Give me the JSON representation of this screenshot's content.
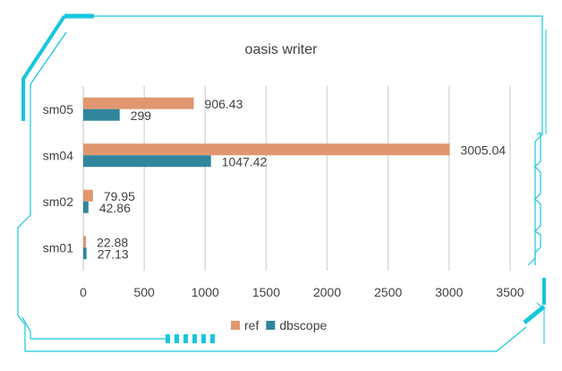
{
  "chart_data": {
    "type": "bar",
    "orientation": "horizontal",
    "title": "oasis writer",
    "categories": [
      "sm05",
      "sm04",
      "sm02",
      "sm01"
    ],
    "series": [
      {
        "name": "ref",
        "values": [
          906.43,
          3005.04,
          79.95,
          22.88
        ],
        "labels": [
          "906.43",
          "3005.04",
          "79.95",
          "22.88"
        ],
        "color": "#E0976F"
      },
      {
        "name": "dbscope",
        "values": [
          299,
          1047.42,
          42.86,
          27.13
        ],
        "labels": [
          "299",
          "1047.42",
          "42.86",
          "27.13"
        ],
        "color": "#31859C"
      }
    ],
    "xlim": [
      0,
      3500
    ],
    "xticks": [
      "0",
      "500",
      "1000",
      "1500",
      "2000",
      "2500",
      "3000",
      "3500"
    ],
    "grid": true,
    "legend": "bottom"
  },
  "frame_color": "#17C6DC"
}
